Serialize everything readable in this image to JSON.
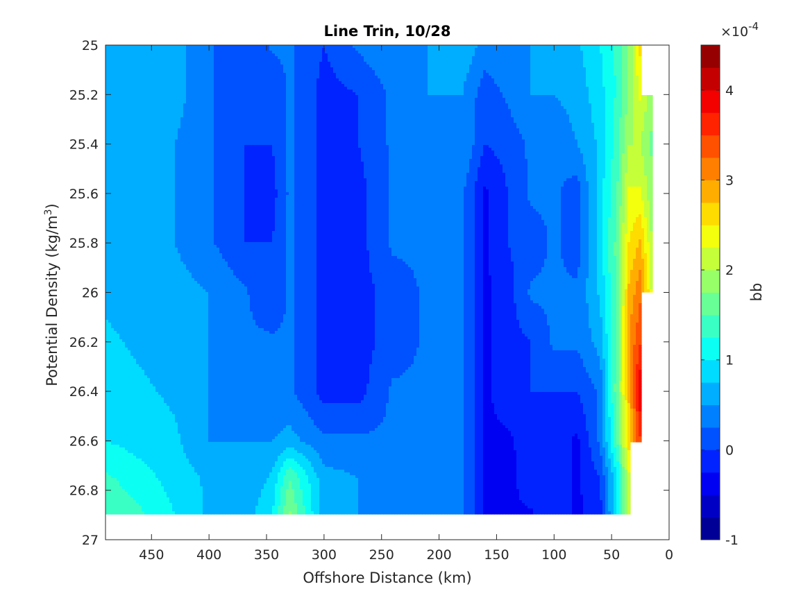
{
  "chart_data": {
    "type": "heatmap",
    "title": "Line Trin, 10/28",
    "xlabel": "Offshore Distance (km)",
    "ylabel": "Potential Density (kg/m",
    "ylabel_sup": "3",
    "ylabel_end": ")",
    "colorbar_label": "bb",
    "colorbar_exponent_base": "×10",
    "colorbar_exponent": "-4",
    "xlim": [
      0,
      490
    ],
    "x_reversed": true,
    "ylim": [
      25,
      27
    ],
    "y_reversed": true,
    "clim": [
      -1,
      4.5
    ],
    "colorbar_levels": 22,
    "colormap": "jet",
    "x_ticks": [
      450,
      400,
      350,
      300,
      250,
      200,
      150,
      100,
      50,
      0
    ],
    "x_tick_labels": [
      "450",
      "400",
      "350",
      "300",
      "250",
      "200",
      "150",
      "100",
      "50",
      "0"
    ],
    "y_ticks": [
      25,
      25.2,
      25.4,
      25.6,
      25.8,
      26,
      26.2,
      26.4,
      26.6,
      26.8,
      27
    ],
    "y_tick_labels": [
      "25",
      "25.2",
      "25.4",
      "25.6",
      "25.8",
      "26",
      "26.2",
      "26.4",
      "26.6",
      "26.8",
      "27"
    ],
    "colorbar_ticks": [
      -1,
      0,
      1,
      2,
      3,
      4
    ],
    "colorbar_tick_labels": [
      "-1",
      "0",
      "1",
      "2",
      "3",
      "4"
    ],
    "x": [
      490,
      460,
      430,
      400,
      370,
      345,
      330,
      300,
      270,
      240,
      210,
      180,
      160,
      140,
      120,
      100,
      80,
      60,
      45,
      35,
      25,
      15
    ],
    "y": [
      25.0,
      25.2,
      25.4,
      25.6,
      25.8,
      26.0,
      26.2,
      26.4,
      26.6,
      26.75,
      26.9
    ],
    "values": [
      [
        0.5,
        0.5,
        0.6,
        0.3,
        0.0,
        0.3,
        0.3,
        0.0,
        0.3,
        0.5,
        0.5,
        0.7,
        0.4,
        0.5,
        0.5,
        0.6,
        0.7,
        1.0,
        1.3,
        1.8,
        2.6,
        null
      ],
      [
        0.5,
        0.5,
        0.6,
        0.3,
        0.0,
        0.0,
        0.3,
        -0.1,
        0.0,
        0.3,
        0.5,
        0.5,
        0.1,
        0.3,
        0.5,
        0.5,
        0.6,
        0.9,
        1.3,
        1.8,
        2.3,
        1.8
      ],
      [
        0.6,
        0.5,
        0.5,
        0.3,
        0.0,
        0.0,
        0.3,
        -0.1,
        0.0,
        0.3,
        0.3,
        0.5,
        0.0,
        0.1,
        0.3,
        0.3,
        0.5,
        0.8,
        1.4,
        2.0,
        2.0,
        1.7
      ],
      [
        0.6,
        0.6,
        0.5,
        0.3,
        0.0,
        -0.1,
        0.3,
        -0.1,
        -0.1,
        0.3,
        0.3,
        0.3,
        -0.3,
        0.0,
        0.3,
        0.3,
        0.1,
        0.9,
        1.5,
        2.3,
        2.3,
        1.8
      ],
      [
        0.7,
        0.6,
        0.5,
        0.3,
        0.0,
        0.0,
        0.3,
        -0.1,
        -0.1,
        0.3,
        0.3,
        0.3,
        -0.3,
        0.0,
        0.1,
        0.3,
        0.1,
        0.9,
        1.6,
        2.5,
        2.8,
        2.0
      ],
      [
        0.7,
        0.6,
        0.6,
        0.5,
        0.3,
        0.0,
        0.3,
        -0.1,
        -0.1,
        0.1,
        0.3,
        0.3,
        -0.3,
        -0.1,
        0.3,
        0.3,
        0.3,
        0.8,
        1.6,
        2.8,
        3.2,
        2.2
      ],
      [
        0.8,
        0.7,
        0.6,
        0.5,
        0.3,
        0.3,
        0.3,
        -0.1,
        -0.1,
        0.1,
        0.3,
        0.3,
        -0.3,
        -0.1,
        0.0,
        0.3,
        0.3,
        0.6,
        1.6,
        3.0,
        3.5,
        null
      ],
      [
        0.9,
        0.8,
        0.7,
        0.5,
        0.3,
        0.3,
        0.3,
        -0.1,
        -0.1,
        0.3,
        0.3,
        0.3,
        -0.3,
        -0.1,
        0.0,
        0.0,
        0.0,
        0.3,
        1.7,
        2.8,
        4.0,
        null
      ],
      [
        1.0,
        0.9,
        0.8,
        0.5,
        0.5,
        0.5,
        0.6,
        0.3,
        0.3,
        0.3,
        0.3,
        0.3,
        -0.3,
        -0.3,
        -0.1,
        -0.1,
        -0.3,
        0.3,
        1.5,
        2.6,
        3.5,
        null
      ],
      [
        1.3,
        1.1,
        0.9,
        0.7,
        0.5,
        0.8,
        1.5,
        0.6,
        0.5,
        0.3,
        0.3,
        0.3,
        -0.3,
        -0.4,
        0.0,
        0.0,
        -0.3,
        0.0,
        1.0,
        2.2,
        null,
        null
      ],
      [
        1.5,
        1.3,
        1.0,
        0.7,
        0.6,
        1.0,
        1.8,
        0.6,
        0.5,
        0.3,
        0.3,
        0.3,
        -0.3,
        -0.3,
        -0.3,
        0.0,
        -0.3,
        -0.1,
        1.0,
        2.0,
        null,
        null
      ]
    ]
  }
}
